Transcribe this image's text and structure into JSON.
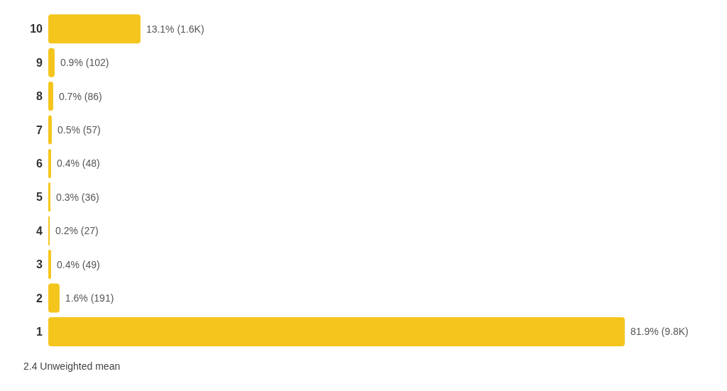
{
  "chart_data": {
    "type": "bar",
    "orientation": "horizontal",
    "categories": [
      "10",
      "9",
      "8",
      "7",
      "6",
      "5",
      "4",
      "3",
      "2",
      "1"
    ],
    "values": [
      13.1,
      0.9,
      0.7,
      0.5,
      0.4,
      0.3,
      0.2,
      0.4,
      1.6,
      81.9
    ],
    "value_labels": [
      "13.1% (1.6K)",
      "0.9% (102)",
      "0.7% (86)",
      "0.5% (57)",
      "0.4% (48)",
      "0.3% (36)",
      "0.2% (27)",
      "0.4% (49)",
      "1.6% (191)",
      "81.9% (9.8K)"
    ],
    "color": "#f4c51c",
    "annotations": [
      "2.4 Unweighted mean"
    ]
  }
}
